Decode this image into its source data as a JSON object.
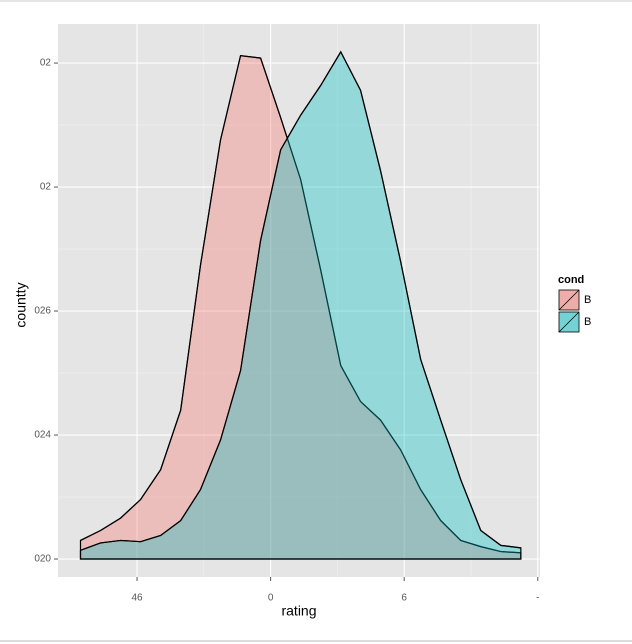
{
  "chart_data": {
    "type": "density",
    "xlabel": "rating",
    "ylabel": "countty",
    "legend_title": "cond",
    "x": [
      -8.54,
      -7.64,
      -6.74,
      -5.84,
      -4.94,
      -4.04,
      -3.15,
      -2.25,
      -1.35,
      -0.45,
      0.45,
      1.35,
      2.25,
      3.15,
      4.04,
      4.94,
      5.84,
      6.74,
      7.64,
      8.54,
      9.44,
      10.34,
      11.24
    ],
    "series": [
      {
        "name": "B",
        "color": "#F8766D",
        "values": [
          0.15,
          0.23,
          0.33,
          0.48,
          0.72,
          1.2,
          2.37,
          3.38,
          4.06,
          4.04,
          3.56,
          3.06,
          2.33,
          1.56,
          1.27,
          1.12,
          0.88,
          0.56,
          0.31,
          0.15,
          0.1,
          0.06,
          0.05
        ]
      },
      {
        "name": "B",
        "color": "#00BFC4",
        "values": [
          0.07,
          0.13,
          0.15,
          0.14,
          0.19,
          0.31,
          0.56,
          0.96,
          1.52,
          2.57,
          3.3,
          3.58,
          3.82,
          4.09,
          3.78,
          3.13,
          2.4,
          1.61,
          1.12,
          0.64,
          0.23,
          0.11,
          0.09
        ]
      }
    ],
    "xlim": [
      -9.55,
      12.1
    ],
    "xticks": [
      {
        "value": -6,
        "label": "46"
      },
      0,
      6,
      {
        "value": 12,
        "label": "-"
      }
    ],
    "ylim": [
      -0.145,
      4.315
    ],
    "yticks": [
      {
        "value": 0,
        "label": "020"
      },
      {
        "value": 1,
        "label": "024"
      },
      {
        "value": 2,
        "label": "026"
      },
      {
        "value": 3,
        "label": "02"
      },
      {
        "value": 4,
        "label": "02"
      }
    ],
    "grid": true
  }
}
